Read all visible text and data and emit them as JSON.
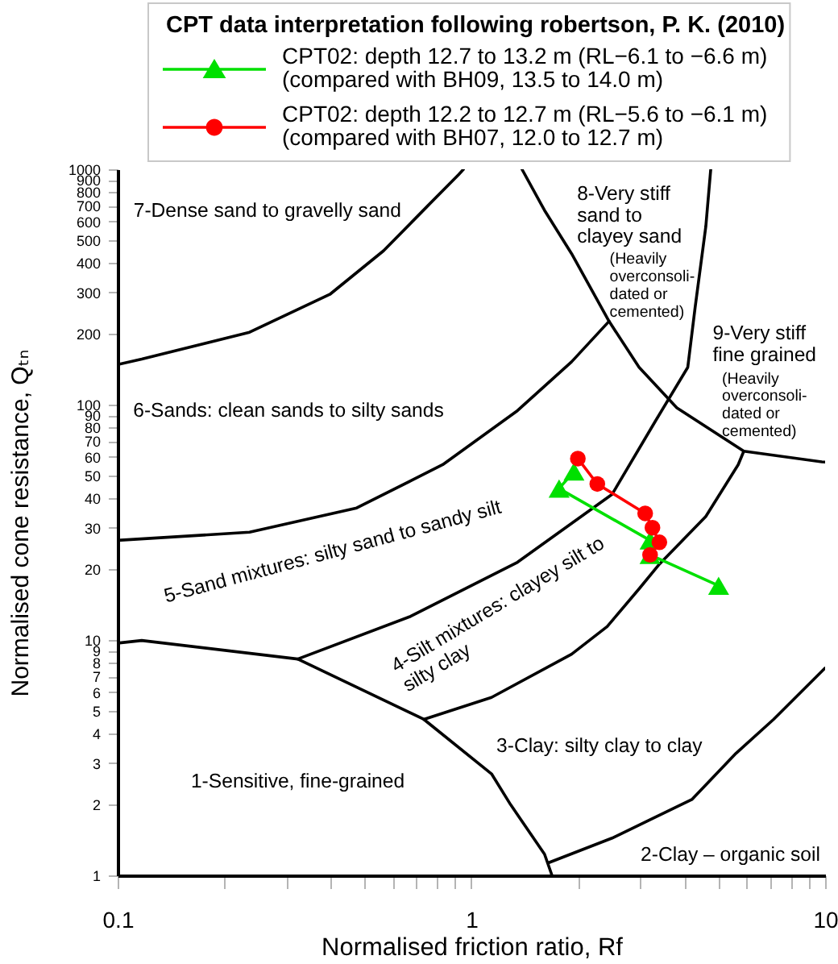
{
  "chart_data": {
    "type": "line",
    "legend_title": "CPT data interpretation following robertson, P. K. (2010)",
    "xlabel": "Normalised friction ratio, Rf",
    "ylabel": "Normalised cone resistance, Qₜₙ",
    "log": "xy",
    "xlim": [
      0.1,
      10
    ],
    "ylim": [
      1,
      1000
    ],
    "xticks": [
      0.1,
      {
        "value": 0.2,
        "label": null
      },
      {
        "value": 0.3,
        "label": null
      },
      {
        "value": 0.4,
        "label": null
      },
      {
        "value": 0.5,
        "label": null
      },
      {
        "value": 0.6,
        "label": null
      },
      {
        "value": 0.7,
        "label": null
      },
      {
        "value": 0.8,
        "label": null
      },
      {
        "value": 0.9,
        "label": null
      },
      1,
      {
        "value": 2,
        "label": null
      },
      {
        "value": 3,
        "label": null
      },
      {
        "value": 4,
        "label": null
      },
      {
        "value": 5,
        "label": null
      },
      {
        "value": 6,
        "label": null
      },
      {
        "value": 7,
        "label": null
      },
      {
        "value": 8,
        "label": null
      },
      {
        "value": 9,
        "label": null
      },
      10
    ],
    "yticks": [
      1,
      2,
      3,
      4,
      5,
      6,
      7,
      8,
      9,
      10,
      20,
      30,
      40,
      50,
      60,
      70,
      80,
      90,
      100,
      200,
      300,
      400,
      500,
      600,
      700,
      800,
      900,
      1000
    ],
    "legend": "top",
    "series": [
      {
        "color": "#000000",
        "x": [
          0.1,
          0.117,
          0.236,
          0.398,
          0.565,
          0.747,
          0.921,
          0.95
        ],
        "values": [
          148,
          156,
          203,
          294,
          451,
          691,
          950,
          1000
        ]
      },
      {
        "color": "#000000",
        "x": [
          0.1,
          0.117,
          0.323,
          0.734,
          1.14,
          1.29,
          1.61,
          1.69
        ],
        "values": [
          9.7,
          9.95,
          8.3,
          4.6,
          2.7,
          2.0,
          1.23,
          1
        ]
      },
      {
        "color": "#000000",
        "x": [
          0.1,
          0.236,
          0.474,
          0.673,
          0.83,
          1.35,
          1.92,
          2.45
        ],
        "values": [
          26.5,
          28.7,
          36.4,
          47.4,
          55.6,
          94.3,
          152,
          226
        ]
      },
      {
        "color": "#000000",
        "x": [
          0.323,
          0.673,
          1.35,
          2.5,
          3.31,
          4.09,
          4.29,
          4.6,
          4.75
        ],
        "values": [
          8.3,
          12.6,
          21.4,
          41.6,
          84.9,
          144,
          258,
          571,
          1000
        ]
      },
      {
        "color": "#000000",
        "x": [
          0.734,
          1.14,
          1.92,
          2.42,
          2.98,
          3.4,
          4.6,
          5.68,
          5.89
        ],
        "values": [
          4.6,
          5.7,
          8.7,
          11.4,
          16.5,
          21,
          33.5,
          55.6,
          63.4
        ]
      },
      {
        "color": "#000000",
        "x": [
          1.39,
          1.61,
          1.92,
          2.45,
          2.98,
          3.81,
          5.89,
          9.79,
          10
        ],
        "values": [
          1000,
          669,
          438,
          226,
          144,
          96.9,
          63.4,
          57.1,
          57
        ]
      },
      {
        "color": "#000000",
        "x": [
          1.65,
          2.5,
          4.2,
          5.6,
          7.15,
          10
        ],
        "values": [
          1.13,
          1.44,
          2.1,
          3.3,
          4.6,
          7.6
        ]
      },
      {
        "name": "CPT02: depth 12.7 to 13.2 m (RL−6.1 to −6.6 m)\n(compared with BH09, 13.5 to 14.0 m)",
        "color": "#00e000",
        "marker": "triangle",
        "x": [
          1.95,
          1.77,
          3.2,
          3.2,
          5.0
        ],
        "values": [
          52,
          44,
          26.5,
          23,
          17
        ]
      },
      {
        "name": "CPT02: depth 12.2 to 12.7 m (RL−5.6 to −6.1 m)\n(compared with BH07, 12.0 to 12.7 m)",
        "color": "#ff0000",
        "marker": "circle",
        "x": [
          2.0,
          2.27,
          3.1,
          3.25,
          3.4,
          3.2
        ],
        "values": [
          59,
          46,
          34.5,
          30,
          26,
          23
        ]
      }
    ],
    "annotations": [
      "7-Dense sand to gravelly sand",
      "8-Very stiff\nsand to\nclayey sand",
      "(Heavily\noverconsoli-\ndated or\ncemented)",
      "9-Very stiff\nfine grained",
      "(Heavily\noverconsoli-\ndated or\ncemented)",
      "6-Sands: clean sands to silty sands",
      "5-Sand mixtures: silty sand to sandy silt",
      "4-Silt mixtures: clayey silt to\nsilty clay",
      "3-Clay: silty clay to clay",
      "1-Sensitive, fine-grained",
      "2-Clay – organic soil"
    ]
  }
}
